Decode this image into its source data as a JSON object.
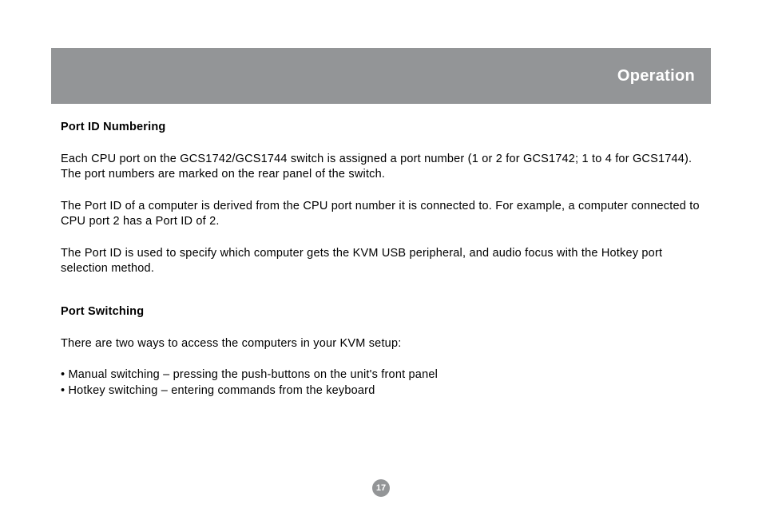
{
  "header": {
    "title": "Operation",
    "bg_color": "#939597",
    "text_color": "#ffffff",
    "title_fontsize": 20
  },
  "body": {
    "text_color": "#000000",
    "background_color": "#ffffff",
    "font_family": "Arial, Helvetica, sans-serif",
    "fontsize": 14.5
  },
  "sections": {
    "port_id": {
      "heading": "Port ID Numbering",
      "para1": "Each CPU port on the GCS1742/GCS1744 switch is assigned a port number (1 or 2 for GCS1742; 1 to 4 for GCS1744). The port numbers are marked on the rear panel of the switch.",
      "para2": "The Port ID of a computer is derived from the CPU port number it is connected to. For example, a computer connected to CPU port 2 has a Port ID of 2.",
      "para3": "The Port ID is used to specify which computer gets the KVM USB peripheral, and audio focus with the Hotkey port selection method."
    },
    "port_switching": {
      "heading": "Port Switching",
      "intro": "There are two ways to access the computers in your KVM setup:",
      "bullet1": "• Manual switching – pressing the push-buttons on the unit's front panel",
      "bullet2": "• Hotkey switching – entering commands from the keyboard"
    }
  },
  "page_number": {
    "label": "17",
    "bg_color": "#939597",
    "text_color": "#ffffff"
  }
}
